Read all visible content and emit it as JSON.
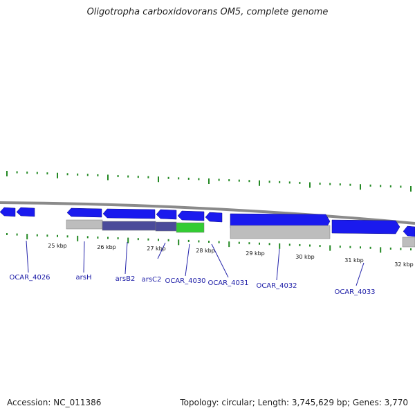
{
  "title": "Oligotropha carboxidovorans OM5, complete genome",
  "accession": "Accession: NC_011386",
  "info": "Topology: circular; Length: 3,745,629 bp; Genes: 3,770",
  "colors": {
    "backbone": "#8a8a8a",
    "gene_blue": "#1a1aee",
    "gene_gray": "#bdbdbd",
    "gene_highlight": "#4b4b9a",
    "gene_green": "#33cc33",
    "tick_green": "#228822",
    "label_blue": "#1a1aa6"
  },
  "kbp_ticks": [
    {
      "label": "25 kbp"
    },
    {
      "label": "26 kbp"
    },
    {
      "label": "27 kbp"
    },
    {
      "label": "28 kbp"
    },
    {
      "label": "29 kbp"
    },
    {
      "label": "30 kbp"
    },
    {
      "label": "31 kbp"
    },
    {
      "label": "32 kbp"
    }
  ],
  "genes": [
    {
      "name": "OCAR_4026"
    },
    {
      "name": "arsH"
    },
    {
      "name": "arsB2"
    },
    {
      "name": "arsC2"
    },
    {
      "name": "OCAR_4030"
    },
    {
      "name": "OCAR_4031"
    },
    {
      "name": "OCAR_4032"
    },
    {
      "name": "OCAR_4033"
    }
  ]
}
